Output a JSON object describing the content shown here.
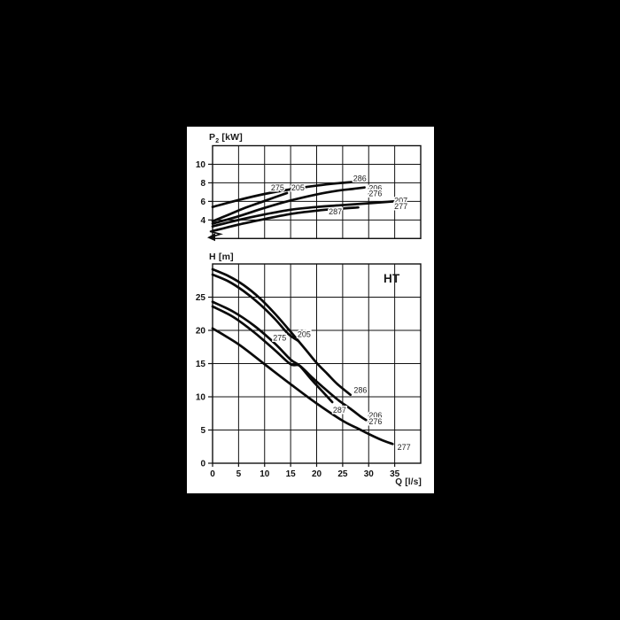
{
  "window": {
    "background": "#000000",
    "panel_background": "#ffffff",
    "ink_color": "#111111",
    "curve_color": "#0a0a0a"
  },
  "titles": {
    "p2_main": "P",
    "p2_sub": "2",
    "p2_unit": " [kW]",
    "h": "H [m]",
    "q": "Q [l/s]",
    "variant": "HT"
  },
  "chart_data": [
    {
      "type": "line",
      "title": "P2 [kW] vs Q  (shaft power curves)",
      "xlabel": "Q [l/s]",
      "ylabel": "P2 [kW]",
      "xlim": [
        0,
        40
      ],
      "ylim": [
        2,
        12
      ],
      "xgrid_step": 5,
      "ygrid_step": 2,
      "grid": true,
      "axis_break_low_y": true,
      "x_tick_labels": [],
      "y_tick_labels": [
        4,
        6,
        8,
        10
      ],
      "series": [
        {
          "name": "275/205",
          "points": [
            [
              0,
              3.85
            ],
            [
              3,
              4.55
            ],
            [
              6,
              5.25
            ],
            [
              9,
              5.85
            ],
            [
              12,
              6.45
            ],
            [
              14.3,
              6.9
            ]
          ]
        },
        {
          "name": "286",
          "points": [
            [
              0,
              5.4
            ],
            [
              5,
              6.15
            ],
            [
              10,
              6.8
            ],
            [
              15,
              7.3
            ],
            [
              20,
              7.7
            ],
            [
              24,
              7.95
            ],
            [
              27.3,
              8.1
            ]
          ]
        },
        {
          "name": "206/276",
          "points": [
            [
              0,
              3.6
            ],
            [
              5,
              4.4
            ],
            [
              10,
              5.3
            ],
            [
              15,
              6.1
            ],
            [
              20,
              6.75
            ],
            [
              24,
              7.15
            ],
            [
              27,
              7.35
            ],
            [
              29.2,
              7.5
            ]
          ]
        },
        {
          "name": "207/277",
          "points": [
            [
              0,
              3.3
            ],
            [
              5,
              4.0
            ],
            [
              10,
              4.6
            ],
            [
              15,
              5.1
            ],
            [
              20,
              5.4
            ],
            [
              25,
              5.6
            ],
            [
              30,
              5.8
            ],
            [
              34.8,
              6.0
            ]
          ]
        },
        {
          "name": "287",
          "points": [
            [
              0,
              2.8
            ],
            [
              5,
              3.5
            ],
            [
              10,
              4.1
            ],
            [
              15,
              4.65
            ],
            [
              20,
              5.0
            ],
            [
              24,
              5.2
            ],
            [
              28,
              5.35
            ]
          ]
        }
      ],
      "annotations": [
        {
          "text": "275",
          "x": 12.5,
          "y": 7.5
        },
        {
          "text": "205",
          "x": 16.4,
          "y": 7.5
        },
        {
          "text": "286",
          "x": 28.3,
          "y": 8.5
        },
        {
          "text": "206",
          "x": 31.3,
          "y": 7.45
        },
        {
          "text": "276",
          "x": 31.3,
          "y": 6.85
        },
        {
          "text": "207",
          "x": 36.2,
          "y": 6.1
        },
        {
          "text": "277",
          "x": 36.2,
          "y": 5.5
        },
        {
          "text": "287",
          "x": 23.6,
          "y": 4.9
        }
      ]
    },
    {
      "type": "line",
      "title": "H [m] vs Q  (head curves, HT)",
      "xlabel": "Q [l/s]",
      "ylabel": "H [m]",
      "corner_label": "HT",
      "xlim": [
        0,
        40
      ],
      "ylim": [
        0,
        30
      ],
      "xgrid_step": 5,
      "ygrid_step": 5,
      "grid": true,
      "axis_break_low_y": false,
      "x_tick_labels": [
        0,
        5,
        10,
        15,
        20,
        25,
        30,
        35
      ],
      "y_tick_labels": [
        0,
        5,
        10,
        15,
        20,
        25
      ],
      "series": [
        {
          "name": "205",
          "points": [
            [
              0,
              29.2
            ],
            [
              3,
              28.2
            ],
            [
              6,
              26.8
            ],
            [
              9,
              24.9
            ],
            [
              12,
              22.5
            ],
            [
              15,
              19.8
            ],
            [
              16.5,
              18.4
            ],
            [
              18,
              17.0
            ],
            [
              20,
              15.1
            ],
            [
              22,
              13.5
            ],
            [
              24,
              11.9
            ],
            [
              26.5,
              10.3
            ]
          ]
        },
        {
          "name": "275",
          "points": [
            [
              0,
              28.4
            ],
            [
              3,
              27.4
            ],
            [
              6,
              25.9
            ],
            [
              9,
              24.0
            ],
            [
              12,
              21.7
            ],
            [
              14.5,
              19.5
            ],
            [
              16.5,
              18.4
            ]
          ]
        },
        {
          "name": "287",
          "points": [
            [
              0,
              24.3
            ],
            [
              4,
              22.8
            ],
            [
              8,
              20.7
            ],
            [
              12,
              18.0
            ],
            [
              15,
              15.6
            ],
            [
              16.7,
              14.7
            ],
            [
              19,
              12.6
            ],
            [
              21,
              10.9
            ],
            [
              23,
              9.2
            ]
          ]
        },
        {
          "name": "206/276",
          "points": [
            [
              0,
              23.6
            ],
            [
              4,
              22.0
            ],
            [
              8,
              19.7
            ],
            [
              12,
              17.0
            ],
            [
              15,
              14.9
            ],
            [
              16.7,
              14.7
            ],
            [
              19,
              13.0
            ],
            [
              21,
              11.6
            ],
            [
              24,
              9.6
            ],
            [
              26.5,
              8.2
            ],
            [
              28.5,
              7.0
            ],
            [
              29.5,
              6.5
            ]
          ]
        },
        {
          "name": "277",
          "points": [
            [
              0,
              20.3
            ],
            [
              5,
              17.9
            ],
            [
              10,
              14.9
            ],
            [
              15,
              11.9
            ],
            [
              20,
              9.0
            ],
            [
              25,
              6.4
            ],
            [
              28,
              5.2
            ],
            [
              30,
              4.4
            ],
            [
              32.5,
              3.5
            ],
            [
              34.6,
              2.9
            ]
          ]
        }
      ],
      "annotations": [
        {
          "text": "275",
          "x": 12.9,
          "y": 18.9
        },
        {
          "text": "205",
          "x": 17.6,
          "y": 19.4
        },
        {
          "text": "286",
          "x": 28.4,
          "y": 11.0
        },
        {
          "text": "287",
          "x": 24.4,
          "y": 8.0
        },
        {
          "text": "206",
          "x": 31.3,
          "y": 7.2
        },
        {
          "text": "276",
          "x": 31.3,
          "y": 6.3
        },
        {
          "text": "277",
          "x": 36.8,
          "y": 2.4
        }
      ]
    }
  ]
}
